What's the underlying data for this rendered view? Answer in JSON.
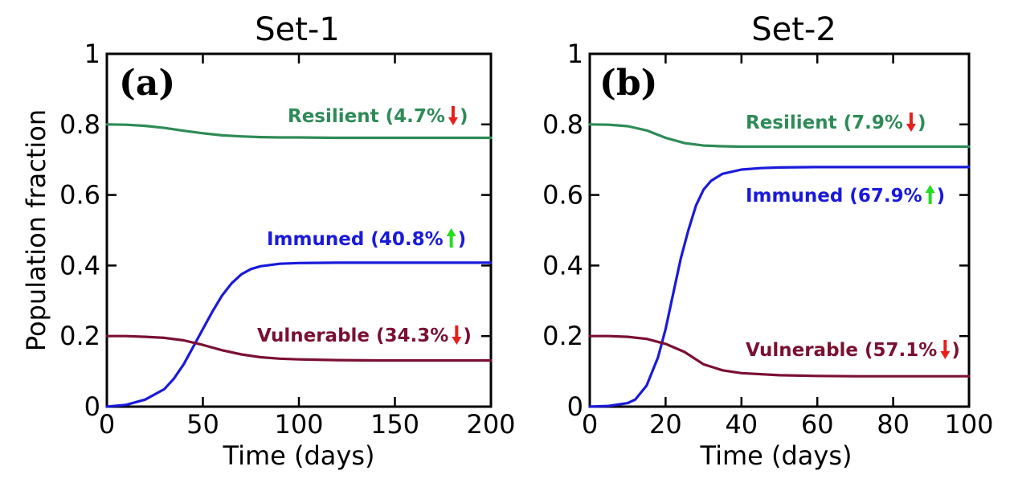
{
  "chart_data": [
    {
      "type": "line",
      "title": "Set-1",
      "panel_label": "(a)",
      "xlabel": "Time (days)",
      "ylabel": "Population fraction",
      "xlim": [
        0,
        200
      ],
      "ylim": [
        0,
        1
      ],
      "xticks": [
        "0",
        "50",
        "100",
        "150",
        "200"
      ],
      "yticks": [
        "0",
        "0.2",
        "0.4",
        "0.6",
        "0.8",
        "1"
      ],
      "series": [
        {
          "name": "Resilient",
          "color": "#2e8b57",
          "annotation": {
            "text": "Resilient (4.7%",
            "close": " )",
            "arrow": "down",
            "arrow_color": "#e8201c"
          },
          "x": [
            0,
            10,
            20,
            30,
            40,
            50,
            60,
            70,
            80,
            90,
            100,
            120,
            140,
            160,
            180,
            200
          ],
          "y": [
            0.8,
            0.799,
            0.796,
            0.79,
            0.782,
            0.775,
            0.769,
            0.766,
            0.764,
            0.763,
            0.763,
            0.762,
            0.762,
            0.762,
            0.762,
            0.762
          ]
        },
        {
          "name": "Immuned",
          "color": "#1a1adb",
          "annotation": {
            "text": "Immuned (40.8%",
            "close": " )",
            "arrow": "up",
            "arrow_color": "#22dd22"
          },
          "x": [
            0,
            10,
            20,
            30,
            35,
            40,
            45,
            50,
            55,
            60,
            65,
            70,
            75,
            80,
            90,
            100,
            120,
            140,
            160,
            180,
            200
          ],
          "y": [
            0.0,
            0.005,
            0.02,
            0.05,
            0.08,
            0.12,
            0.17,
            0.22,
            0.27,
            0.315,
            0.35,
            0.375,
            0.39,
            0.398,
            0.405,
            0.407,
            0.408,
            0.408,
            0.408,
            0.408,
            0.408
          ]
        },
        {
          "name": "Vulnerable",
          "color": "#7a1032",
          "annotation": {
            "text": "Vulnerable (34.3%",
            "close": " )",
            "arrow": "down",
            "arrow_color": "#e8201c"
          },
          "x": [
            0,
            10,
            20,
            30,
            40,
            50,
            60,
            70,
            80,
            90,
            100,
            120,
            140,
            160,
            180,
            200
          ],
          "y": [
            0.2,
            0.2,
            0.198,
            0.195,
            0.188,
            0.175,
            0.16,
            0.148,
            0.14,
            0.136,
            0.134,
            0.132,
            0.131,
            0.131,
            0.131,
            0.131
          ]
        }
      ]
    },
    {
      "type": "line",
      "title": "Set-2",
      "panel_label": "(b)",
      "xlabel": "Time (days)",
      "ylabel": "",
      "xlim": [
        0,
        100
      ],
      "ylim": [
        0,
        1
      ],
      "xticks": [
        "0",
        "20",
        "40",
        "60",
        "80",
        "100"
      ],
      "yticks": [
        "0",
        "0.2",
        "0.4",
        "0.6",
        "0.8",
        "1"
      ],
      "series": [
        {
          "name": "Resilient",
          "color": "#2e8b57",
          "annotation": {
            "text": "Resilient (7.9%",
            "close": " )",
            "arrow": "down",
            "arrow_color": "#e8201c"
          },
          "x": [
            0,
            5,
            10,
            15,
            20,
            25,
            30,
            35,
            40,
            50,
            60,
            70,
            80,
            90,
            100
          ],
          "y": [
            0.8,
            0.799,
            0.795,
            0.783,
            0.762,
            0.747,
            0.74,
            0.738,
            0.737,
            0.737,
            0.737,
            0.737,
            0.737,
            0.737,
            0.737
          ]
        },
        {
          "name": "Immuned",
          "color": "#1a1adb",
          "annotation": {
            "text": "Immuned (67.9%",
            "close": " )",
            "arrow": "up",
            "arrow_color": "#22dd22"
          },
          "x": [
            0,
            5,
            10,
            12,
            15,
            18,
            20,
            22,
            24,
            26,
            28,
            30,
            32,
            35,
            40,
            45,
            50,
            60,
            70,
            80,
            90,
            100
          ],
          "y": [
            0.0,
            0.002,
            0.01,
            0.02,
            0.06,
            0.14,
            0.22,
            0.32,
            0.42,
            0.5,
            0.57,
            0.615,
            0.64,
            0.66,
            0.672,
            0.676,
            0.678,
            0.679,
            0.679,
            0.679,
            0.679,
            0.679
          ]
        },
        {
          "name": "Vulnerable",
          "color": "#7a1032",
          "annotation": {
            "text": "Vulnerable (57.1%",
            "close": " )",
            "arrow": "down",
            "arrow_color": "#e8201c"
          },
          "x": [
            0,
            5,
            10,
            15,
            20,
            25,
            30,
            35,
            40,
            50,
            60,
            70,
            80,
            90,
            100
          ],
          "y": [
            0.2,
            0.2,
            0.198,
            0.192,
            0.178,
            0.155,
            0.12,
            0.103,
            0.095,
            0.089,
            0.087,
            0.086,
            0.086,
            0.086,
            0.086
          ]
        }
      ]
    }
  ]
}
